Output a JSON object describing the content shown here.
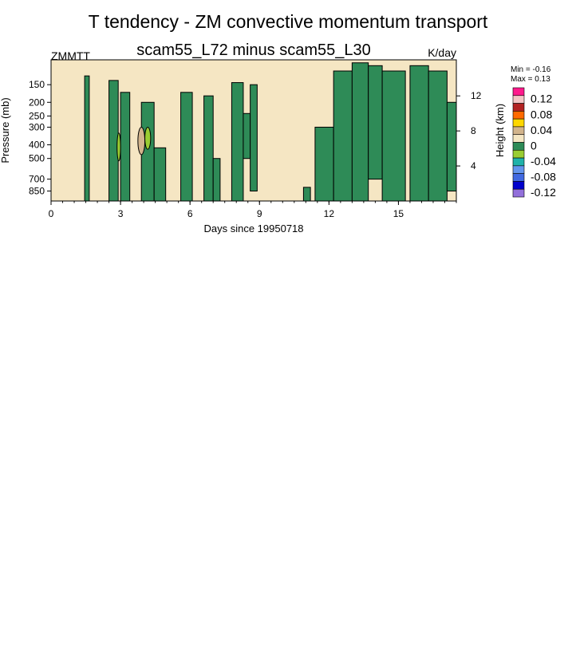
{
  "chart_data": {
    "type": "heatmap",
    "title": "T tendency - ZM convective momentum transport",
    "subtitle": "scam55_L72 minus scam55_L30",
    "left_label": "ZMMTT",
    "units": "K/day",
    "min_label": "Min =  -0.16",
    "max_label": "Max =   0.13",
    "xlabel": "Days since 19950718",
    "ylabel": "Pressure (mb)",
    "ylabel_right": "Height (km)",
    "xlim": [
      0,
      17.5
    ],
    "ylim": [
      1000,
      100
    ],
    "x_ticks": [
      0,
      3,
      6,
      9,
      12,
      15
    ],
    "x_tick_labels": [
      "0",
      "3",
      "6",
      "9",
      "12",
      "15"
    ],
    "y_ticks": [
      150,
      200,
      250,
      300,
      400,
      500,
      700,
      850
    ],
    "y_tick_labels": [
      "150",
      "200",
      "250",
      "300",
      "400",
      "500",
      "700",
      "850"
    ],
    "y_right_ticks_km": [
      4,
      8,
      12
    ],
    "y_right_tick_labels": [
      "4",
      "8",
      "12"
    ],
    "background_color": "#f5e6c3",
    "colorbar": {
      "levels": [
        "0.12",
        "0.08",
        "0.04",
        "0",
        "-0.04",
        "-0.08",
        "-0.12"
      ],
      "colors": [
        "#ff1a8c",
        "#f4c6c6",
        "#b22222",
        "#ff6a00",
        "#ffd700",
        "#d2b48c",
        "#f5e6c3",
        "#2e8b57",
        "#9acd32",
        "#20b2aa",
        "#6495ed",
        "#4169e1",
        "#0000cd",
        "#9370db"
      ]
    },
    "negative_regions": [
      {
        "x0": 1.45,
        "x1": 1.65,
        "p_top": 130,
        "p_bot": 1000
      },
      {
        "x0": 2.5,
        "x1": 2.9,
        "p_top": 140,
        "p_bot": 1000
      },
      {
        "x0": 3.0,
        "x1": 3.4,
        "p_top": 170,
        "p_bot": 1000
      },
      {
        "x0": 3.9,
        "x1": 4.45,
        "p_top": 200,
        "p_bot": 1000
      },
      {
        "x0": 4.45,
        "x1": 4.95,
        "p_top": 420,
        "p_bot": 1000
      },
      {
        "x0": 5.6,
        "x1": 6.1,
        "p_top": 170,
        "p_bot": 1000
      },
      {
        "x0": 6.6,
        "x1": 7.0,
        "p_top": 180,
        "p_bot": 1000
      },
      {
        "x0": 7.0,
        "x1": 7.3,
        "p_top": 500,
        "p_bot": 1000
      },
      {
        "x0": 7.8,
        "x1": 8.3,
        "p_top": 145,
        "p_bot": 1000
      },
      {
        "x0": 8.3,
        "x1": 8.6,
        "p_top": 240,
        "p_bot": 500
      },
      {
        "x0": 8.6,
        "x1": 8.9,
        "p_top": 150,
        "p_bot": 850
      },
      {
        "x0": 10.9,
        "x1": 11.2,
        "p_top": 800,
        "p_bot": 1000
      },
      {
        "x0": 11.4,
        "x1": 12.2,
        "p_top": 300,
        "p_bot": 1000
      },
      {
        "x0": 12.2,
        "x1": 13.0,
        "p_top": 120,
        "p_bot": 1000
      },
      {
        "x0": 13.0,
        "x1": 13.7,
        "p_top": 105,
        "p_bot": 1000
      },
      {
        "x0": 13.7,
        "x1": 14.3,
        "p_top": 110,
        "p_bot": 700
      },
      {
        "x0": 14.3,
        "x1": 15.3,
        "p_top": 120,
        "p_bot": 1000
      },
      {
        "x0": 15.5,
        "x1": 16.3,
        "p_top": 110,
        "p_bot": 1000
      },
      {
        "x0": 16.3,
        "x1": 17.1,
        "p_top": 120,
        "p_bot": 1000
      },
      {
        "x0": 17.1,
        "x1": 17.5,
        "p_top": 200,
        "p_bot": 850
      }
    ],
    "positive_regions": [
      {
        "x0": 3.75,
        "x1": 4.05,
        "p_top": 300,
        "p_bot": 470,
        "color": "#d2b48c"
      },
      {
        "x0": 2.85,
        "x1": 3.0,
        "p_top": 330,
        "p_bot": 520,
        "color": "#9acd32"
      },
      {
        "x0": 4.05,
        "x1": 4.3,
        "p_top": 300,
        "p_bot": 430,
        "color": "#9acd32"
      }
    ]
  }
}
